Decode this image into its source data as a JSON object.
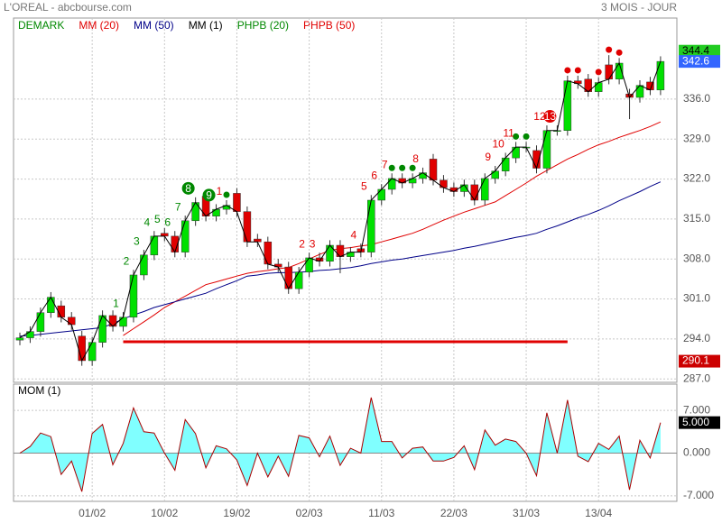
{
  "chart_data": {
    "type": "candlestick",
    "title": "L'OREAL - abcbourse.com",
    "period": "3 MOIS - JOUR",
    "legend": [
      {
        "name": "DEMARK",
        "color": "#008800"
      },
      {
        "name": "MM (20)",
        "color": "#e00000"
      },
      {
        "name": "MM (50)",
        "color": "#000088"
      },
      {
        "name": "MM (1)",
        "color": "#000000"
      },
      {
        "name": "PHPB (20)",
        "color": "#008800"
      },
      {
        "name": "PHPB (50)",
        "color": "#e00000"
      }
    ],
    "categories": [
      null,
      null,
      null,
      null,
      null,
      null,
      null,
      "01/02",
      null,
      null,
      null,
      null,
      null,
      null,
      "10/02",
      null,
      null,
      null,
      null,
      null,
      null,
      "19/02",
      null,
      null,
      null,
      null,
      null,
      null,
      "02/03",
      null,
      null,
      null,
      null,
      null,
      null,
      "11/03",
      null,
      null,
      null,
      null,
      null,
      null,
      "22/03",
      null,
      null,
      null,
      null,
      null,
      null,
      "31/03",
      null,
      null,
      null,
      null,
      null,
      null,
      "13/04",
      null,
      null,
      null,
      null,
      null,
      null
    ],
    "open": [
      293.8,
      294.2,
      295.3,
      298.6,
      299.8,
      297.8,
      294.5,
      290.2,
      293.4,
      298.1,
      296.2,
      297.8,
      305.2,
      308.7,
      312.5,
      312.0,
      309.2,
      314.7,
      319.0,
      315.5,
      316.7,
      319.5,
      316.3,
      311.5,
      311.0,
      307.1,
      306.6,
      302.8,
      305.7,
      308.2,
      307.6,
      310.4,
      308.4,
      309.8,
      309.2,
      318.3,
      320.2,
      322.1,
      321.3,
      322.1,
      325.5,
      321.8,
      320.5,
      319.8,
      321.0,
      318.3,
      322.1,
      323.4,
      325.7,
      327.6,
      327.0,
      323.9,
      330.5,
      330.5,
      339.2,
      339.5,
      337.3,
      342.0,
      339.5,
      336.9,
      336.3,
      339.0,
      337.6
    ],
    "high": [
      295.1,
      296.2,
      299.5,
      302.2,
      300.7,
      298.7,
      295.4,
      294.3,
      299.0,
      299.0,
      298.7,
      306.1,
      309.6,
      312.9,
      313.4,
      312.9,
      315.6,
      318.8,
      319.9,
      317.6,
      318.3,
      320.4,
      317.2,
      312.4,
      311.9,
      308.0,
      307.5,
      306.6,
      309.1,
      309.1,
      311.3,
      311.3,
      310.1,
      310.7,
      319.2,
      321.1,
      323.0,
      323.0,
      323.0,
      324.0,
      326.4,
      322.7,
      321.4,
      321.9,
      321.9,
      323.0,
      324.3,
      326.6,
      328.5,
      328.5,
      327.9,
      331.4,
      331.4,
      340.1,
      340.1,
      340.4,
      339.8,
      343.7,
      343.2,
      337.8,
      339.3,
      339.9,
      343.5
    ],
    "low": [
      292.9,
      293.3,
      294.4,
      297.7,
      296.9,
      295.6,
      289.3,
      289.3,
      292.5,
      295.3,
      295.3,
      296.9,
      304.3,
      307.8,
      311.1,
      308.3,
      308.3,
      313.8,
      314.6,
      314.6,
      315.8,
      315.4,
      310.1,
      310.1,
      306.2,
      305.7,
      301.9,
      301.9,
      304.8,
      306.7,
      306.7,
      305.5,
      307.5,
      308.3,
      308.3,
      317.4,
      319.3,
      320.4,
      320.4,
      321.2,
      320.9,
      319.6,
      318.9,
      318.9,
      317.4,
      317.4,
      321.2,
      322.5,
      324.8,
      326.7,
      323.0,
      323.0,
      329.6,
      329.6,
      337.8,
      336.4,
      336.4,
      338.6,
      338.6,
      332.5,
      335.4,
      336.7,
      336.7
    ],
    "close": [
      294.2,
      295.3,
      298.6,
      301.3,
      297.8,
      296.5,
      290.2,
      293.4,
      298.1,
      296.2,
      297.8,
      305.2,
      308.7,
      312.0,
      312.0,
      309.2,
      314.7,
      317.9,
      315.5,
      316.7,
      317.4,
      316.3,
      311.0,
      311.0,
      307.1,
      306.6,
      302.8,
      305.7,
      308.2,
      307.6,
      310.4,
      308.4,
      309.2,
      309.2,
      318.3,
      320.2,
      322.1,
      321.3,
      322.1,
      323.1,
      321.8,
      320.5,
      319.8,
      321.0,
      318.3,
      322.1,
      323.4,
      325.7,
      327.6,
      327.6,
      323.9,
      330.5,
      330.5,
      339.2,
      338.7,
      337.3,
      338.9,
      339.5,
      342.3,
      336.3,
      338.4,
      337.6,
      342.6
    ],
    "up_color": "#00e000",
    "down_color": "#e00000",
    "series": [
      {
        "name": "MM (20)",
        "color": "#e00000",
        "values": [
          null,
          null,
          null,
          null,
          null,
          null,
          null,
          null,
          null,
          null,
          294.6,
          295.8,
          297.0,
          298.2,
          299.5,
          300.5,
          301.5,
          302.5,
          303.5,
          304.0,
          304.5,
          305.0,
          305.5,
          305.8,
          306.0,
          306.3,
          306.5,
          307.2,
          308.0,
          308.8,
          309.5,
          309.8,
          310.0,
          310.3,
          310.5,
          311.0,
          311.5,
          312.0,
          312.5,
          313.2,
          314.0,
          314.8,
          315.5,
          316.2,
          316.8,
          317.4,
          318.0,
          319.1,
          320.2,
          321.3,
          322.5,
          323.5,
          324.5,
          325.5,
          326.3,
          327.2,
          328.0,
          328.6,
          329.3,
          329.9,
          330.5,
          331.2,
          332.0
        ]
      },
      {
        "name": "MM (50)",
        "color": "#000088",
        "values": [
          294.5,
          294.6,
          294.8,
          295.0,
          295.2,
          295.4,
          295.6,
          295.8,
          296.0,
          296.7,
          297.5,
          298.2,
          298.8,
          299.5,
          300.0,
          300.5,
          301.0,
          301.5,
          302.0,
          302.8,
          303.5,
          304.2,
          305.0,
          305.2,
          305.5,
          305.6,
          305.6,
          305.7,
          305.8,
          306.0,
          306.1,
          306.3,
          306.5,
          306.8,
          307.2,
          307.5,
          307.8,
          308.0,
          308.3,
          308.6,
          308.9,
          309.2,
          309.5,
          309.9,
          310.2,
          310.6,
          311.0,
          311.4,
          311.8,
          312.1,
          312.5,
          313.2,
          313.8,
          314.5,
          315.2,
          315.8,
          316.5,
          317.3,
          318.2,
          319.0,
          319.8,
          320.7,
          321.5
        ]
      }
    ],
    "ylim": [
      286.4,
      350.2
    ],
    "yticks": [
      {
        "value": 287,
        "label": "287.0"
      },
      {
        "value": 294,
        "label": "294.0"
      },
      {
        "value": 301,
        "label": "301.0"
      },
      {
        "value": 308,
        "label": "308.0"
      },
      {
        "value": 315,
        "label": "315.0"
      },
      {
        "value": 322,
        "label": "322.0"
      },
      {
        "value": 329,
        "label": "329.0"
      },
      {
        "value": 336,
        "label": "336.0"
      }
    ],
    "grid": true,
    "support_line": {
      "value": 293.5,
      "start_index": 10,
      "end_index": 53,
      "color": "#e00000"
    },
    "demark_counts": [
      {
        "index": 10,
        "label": "1",
        "color": "#008800"
      },
      {
        "index": 11,
        "label": "2",
        "color": "#008800"
      },
      {
        "index": 12,
        "label": "3",
        "color": "#008800"
      },
      {
        "index": 13,
        "label": "4",
        "color": "#008800"
      },
      {
        "index": 14,
        "label": "5",
        "color": "#008800"
      },
      {
        "index": 15,
        "label": "6",
        "color": "#008800"
      },
      {
        "index": 16,
        "label": "7",
        "color": "#008800"
      },
      {
        "index": 17,
        "label": "8",
        "color": "#008800",
        "circled": true
      },
      {
        "index": 19,
        "label": "9",
        "color": "#008800",
        "circled": true
      },
      {
        "index": 20,
        "label": "1",
        "color": "#e00000"
      },
      {
        "index": 28,
        "label": "2",
        "color": "#e00000"
      },
      {
        "index": 29,
        "label": "3",
        "color": "#e00000"
      },
      {
        "index": 33,
        "label": "4",
        "color": "#e00000"
      },
      {
        "index": 34,
        "label": "5",
        "color": "#e00000"
      },
      {
        "index": 35,
        "label": "6",
        "color": "#e00000"
      },
      {
        "index": 36,
        "label": "7",
        "color": "#e00000"
      },
      {
        "index": 39,
        "label": "8",
        "color": "#e00000"
      },
      {
        "index": 46,
        "label": "9",
        "color": "#e00000"
      },
      {
        "index": 47,
        "label": "10",
        "color": "#e00000"
      },
      {
        "index": 48,
        "label": "11",
        "color": "#e00000"
      },
      {
        "index": 51,
        "label": "12",
        "color": "#e00000"
      },
      {
        "index": 52,
        "label": "13",
        "color": "#e00000",
        "circled": true
      }
    ],
    "phpb_dots": [
      {
        "index": 20,
        "color": "#008800"
      },
      {
        "index": 36,
        "color": "#008800"
      },
      {
        "index": 37,
        "color": "#008800"
      },
      {
        "index": 38,
        "color": "#008800"
      },
      {
        "index": 48,
        "color": "#008800"
      },
      {
        "index": 49,
        "color": "#008800"
      },
      {
        "index": 53,
        "color": "#e00000"
      },
      {
        "index": 54,
        "color": "#e00000"
      },
      {
        "index": 56,
        "color": "#e00000"
      },
      {
        "index": 57,
        "color": "#e00000"
      },
      {
        "index": 58,
        "color": "#e00000"
      }
    ],
    "price_markers": [
      {
        "value": 344.4,
        "label": "344.4",
        "color": "#22cc22",
        "text_color": "#000000"
      },
      {
        "value": 342.6,
        "label": "342.6",
        "color": "#3366ff",
        "text_color": "#ffffff"
      },
      {
        "value": 290.1,
        "label": "290.1",
        "color": "#cc0000",
        "text_color": "#ffffff"
      }
    ],
    "momentum": {
      "name": "MOM (1)",
      "values": [
        0.0,
        1.1,
        3.3,
        2.7,
        -3.5,
        -1.3,
        -6.3,
        3.2,
        4.7,
        -1.9,
        1.6,
        7.4,
        3.5,
        3.3,
        0.0,
        -2.8,
        5.5,
        3.2,
        -2.4,
        1.2,
        0.7,
        -1.1,
        -5.3,
        0.0,
        -3.9,
        -0.5,
        -3.8,
        2.9,
        2.5,
        -0.6,
        2.8,
        -2.0,
        0.8,
        0.0,
        9.1,
        1.9,
        1.9,
        -0.8,
        0.8,
        1.0,
        -1.3,
        -1.3,
        -0.7,
        1.2,
        -2.7,
        3.8,
        1.3,
        2.3,
        1.9,
        0.0,
        -3.7,
        6.6,
        0.0,
        8.7,
        -0.5,
        -1.4,
        1.6,
        0.6,
        2.8,
        -6.0,
        2.1,
        -0.8,
        5.0
      ],
      "last_label": "5.000",
      "line_color": "#aa0000",
      "fill_color": "#80ffff",
      "ylim": [
        -7.9,
        11.3
      ],
      "yticks": [
        {
          "value": -7,
          "label": "-7.000"
        },
        {
          "value": 0,
          "label": "0.000"
        },
        {
          "value": 7,
          "label": "7.000"
        }
      ]
    }
  }
}
